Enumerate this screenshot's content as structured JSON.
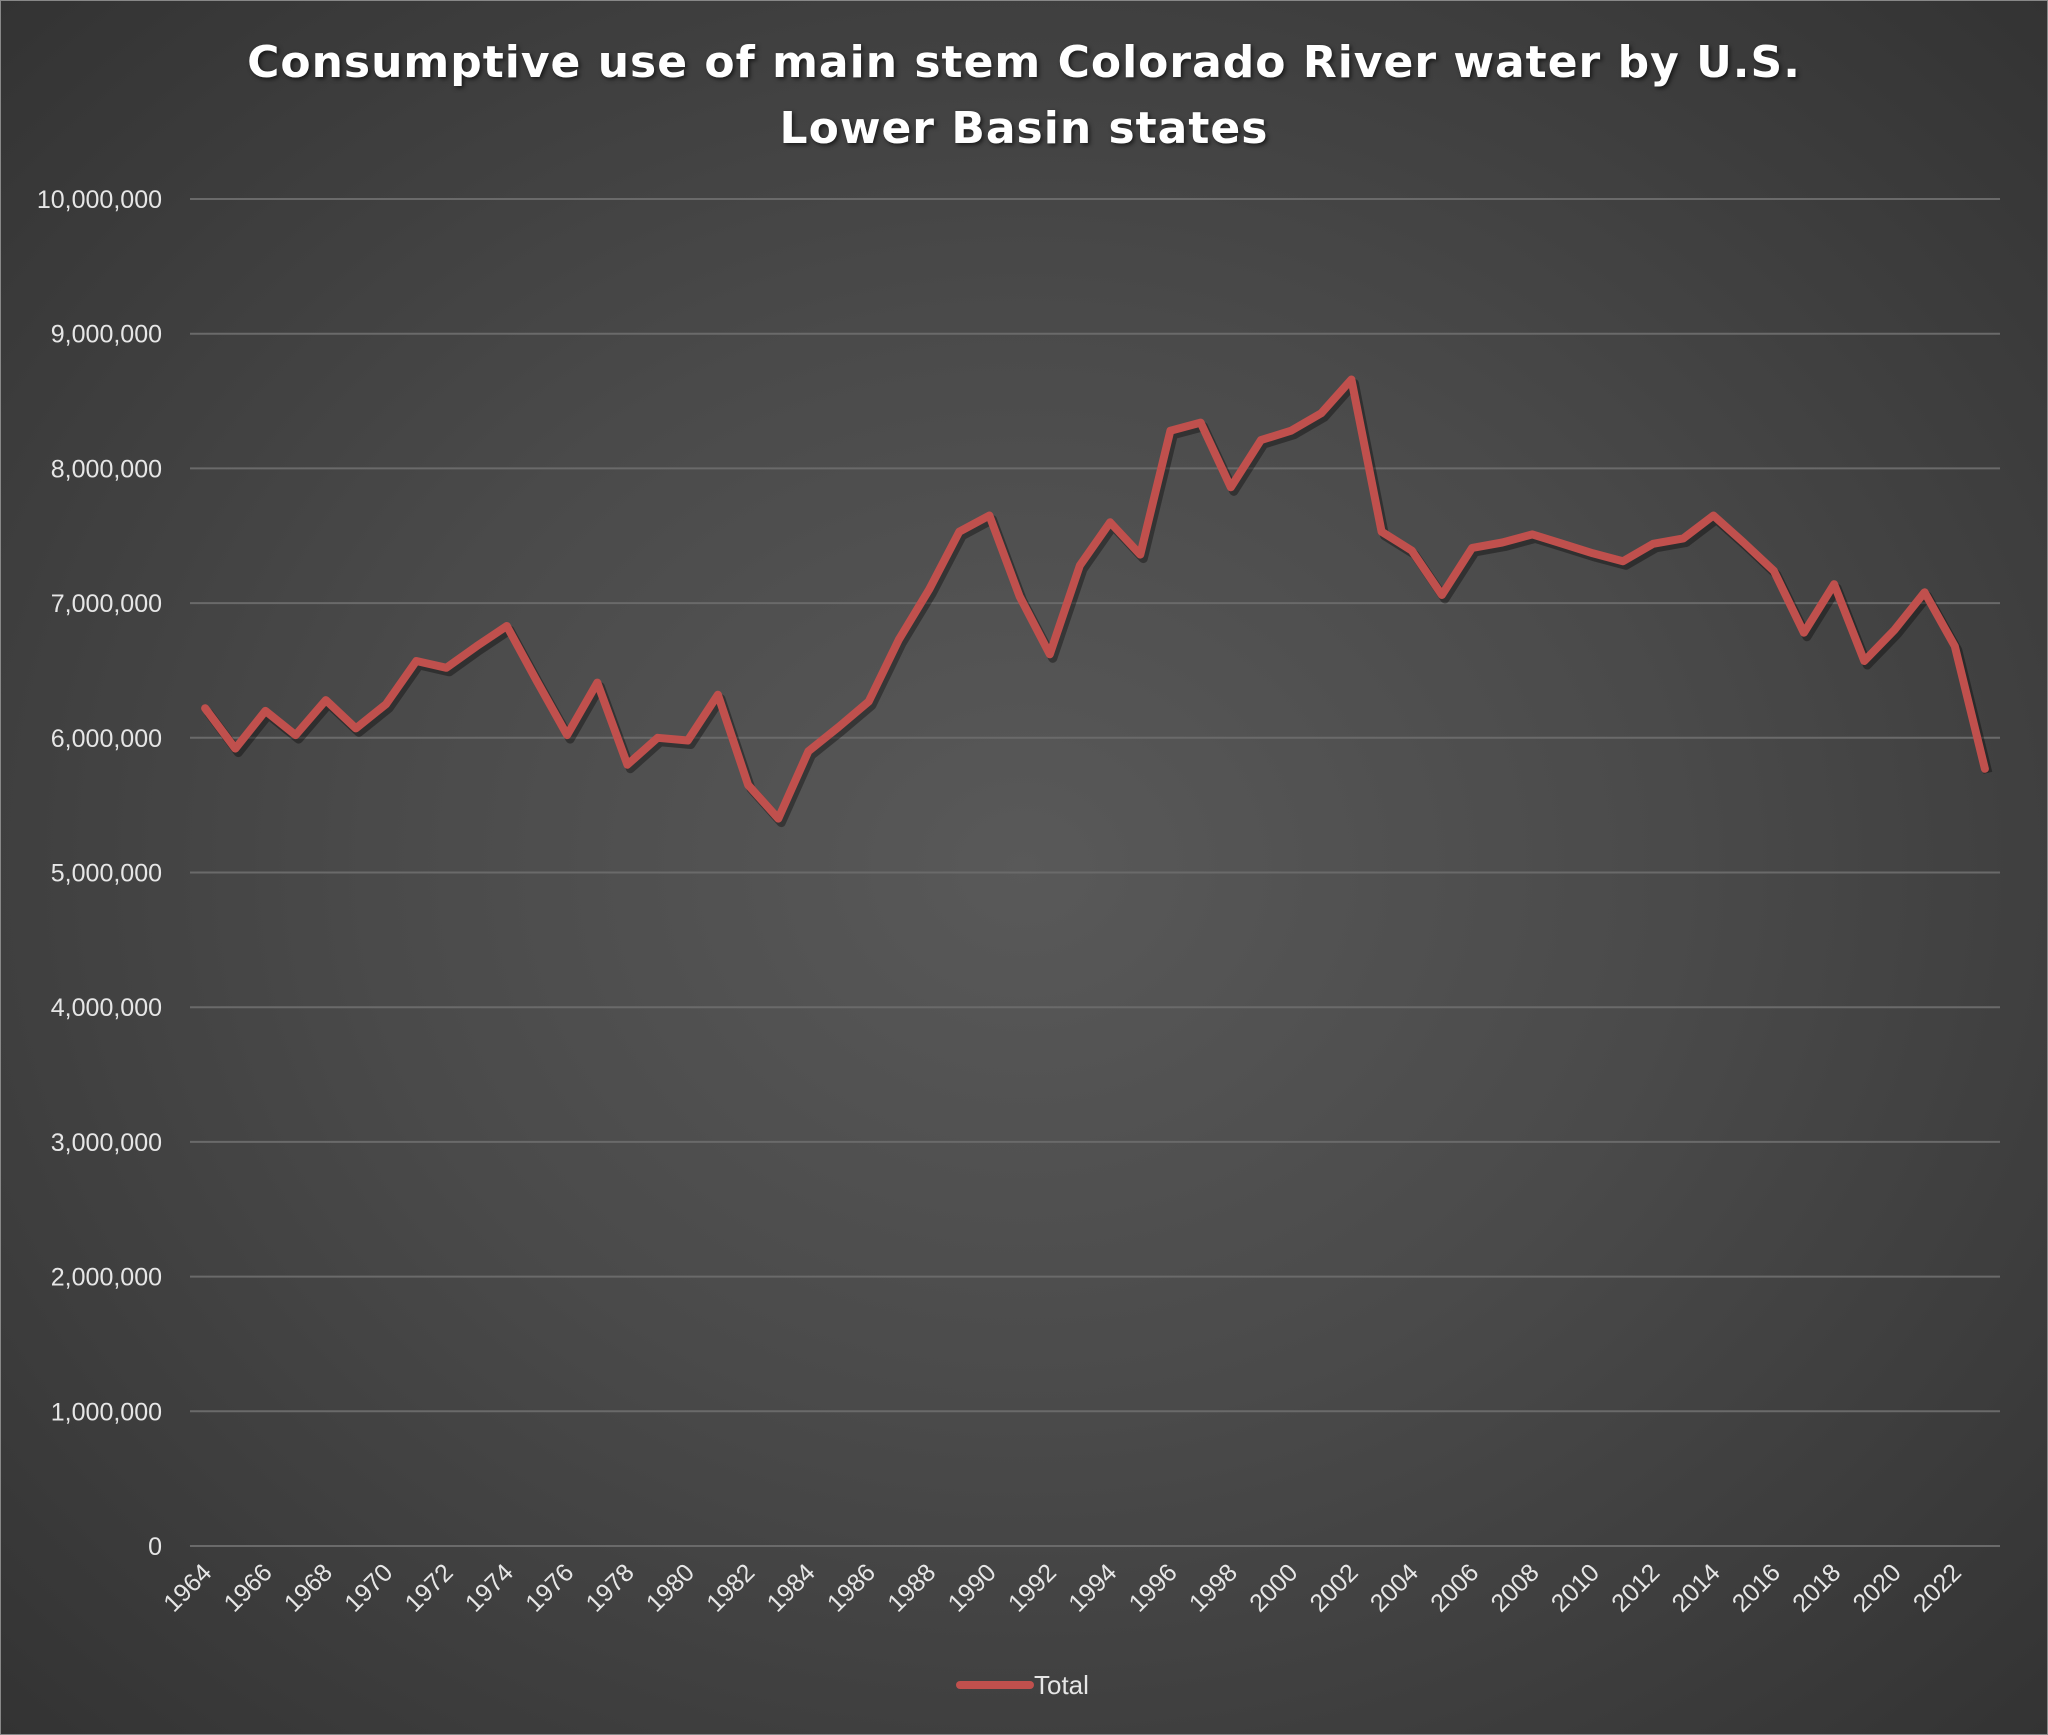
{
  "chart_data": {
    "type": "line",
    "title": "Consumptive use of main stem Colorado River water by U.S. Lower Basin states",
    "title_lines": [
      "Consumptive use of main stem Colorado River water by U.S.",
      "Lower Basin states"
    ],
    "xlabel": "",
    "ylabel": "",
    "ylim": [
      0,
      10000000
    ],
    "yticks": [
      "0",
      "1,000,000",
      "2,000,000",
      "3,000,000",
      "4,000,000",
      "5,000,000",
      "6,000,000",
      "7,000,000",
      "8,000,000",
      "9,000,000",
      "10,000,000"
    ],
    "grid": true,
    "legend": "bottom",
    "line_color": "#c0504d",
    "x": [
      1964,
      1965,
      1966,
      1967,
      1968,
      1969,
      1970,
      1971,
      1972,
      1973,
      1974,
      1975,
      1976,
      1977,
      1978,
      1979,
      1980,
      1981,
      1982,
      1983,
      1984,
      1985,
      1986,
      1987,
      1988,
      1989,
      1990,
      1991,
      1992,
      1993,
      1994,
      1995,
      1996,
      1997,
      1998,
      1999,
      2000,
      2001,
      2002,
      2003,
      2004,
      2005,
      2006,
      2007,
      2008,
      2009,
      2010,
      2011,
      2012,
      2013,
      2014,
      2015,
      2016,
      2017,
      2018,
      2019,
      2020,
      2021,
      2022,
      2023
    ],
    "series": [
      {
        "name": "Total",
        "values": [
          6220000,
          5920000,
          6200000,
          6020000,
          6280000,
          6070000,
          6250000,
          6570000,
          6520000,
          6680000,
          6830000,
          6420000,
          6020000,
          6410000,
          5800000,
          6000000,
          5980000,
          6320000,
          5650000,
          5400000,
          5900000,
          6080000,
          6270000,
          6730000,
          7100000,
          7530000,
          7650000,
          7050000,
          6620000,
          7280000,
          7600000,
          7360000,
          8280000,
          8340000,
          7860000,
          8210000,
          8280000,
          8410000,
          8660000,
          7530000,
          7390000,
          7060000,
          7410000,
          7450000,
          7510000,
          7440000,
          7370000,
          7310000,
          7440000,
          7480000,
          7650000,
          7450000,
          7240000,
          6780000,
          7140000,
          6570000,
          6800000,
          7080000,
          6680000,
          5770000
        ]
      }
    ]
  }
}
